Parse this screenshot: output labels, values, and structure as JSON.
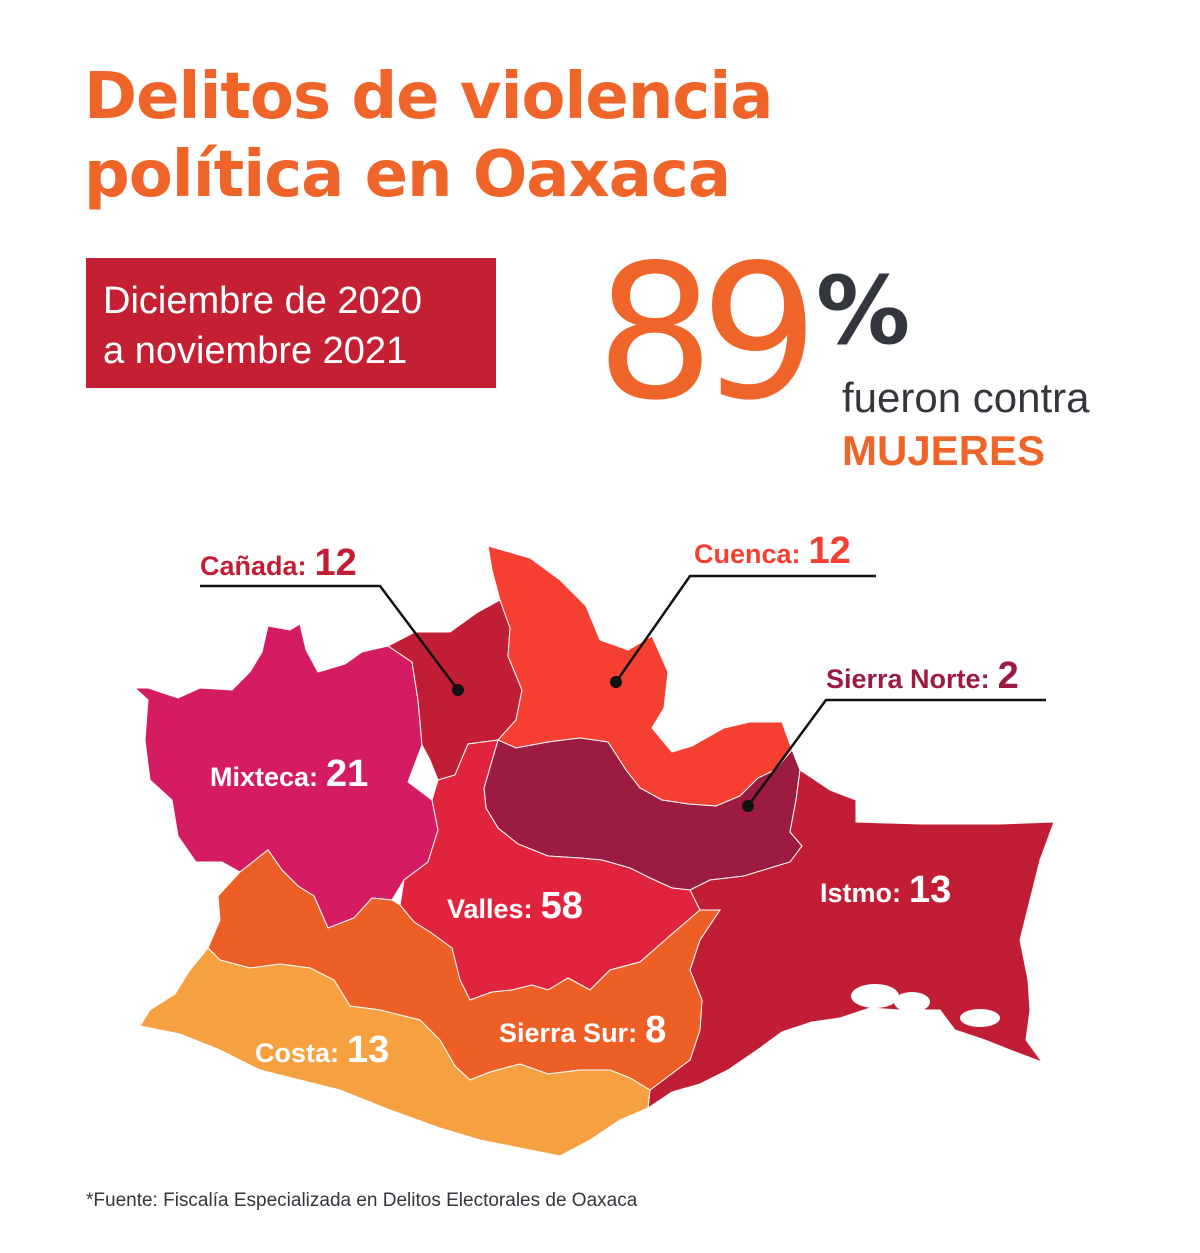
{
  "title": {
    "line1": "Delitos de violencia",
    "line2": "política en Oaxaca"
  },
  "period": {
    "line1": "Diciembre de 2020",
    "line2": "a noviembre 2021"
  },
  "highlight": {
    "number": "89",
    "percent_sign": "%",
    "text": "fueron contra",
    "emphasis": "MUJERES"
  },
  "regions": [
    {
      "name": "Mixteca",
      "value": 21,
      "color": "#d51c62"
    },
    {
      "name": "Cañada",
      "value": 12,
      "color": "#c11d35"
    },
    {
      "name": "Cuenca",
      "value": 12,
      "color": "#f53f31"
    },
    {
      "name": "Sierra Norte",
      "value": 2,
      "color": "#9c1b40"
    },
    {
      "name": "Valles",
      "value": 58,
      "color": "#e1243d"
    },
    {
      "name": "Istmo",
      "value": 13,
      "color": "#c11d35"
    },
    {
      "name": "Sierra Sur",
      "value": 8,
      "color": "#ee5f26"
    },
    {
      "name": "Costa",
      "value": 13,
      "color": "#f7a040"
    }
  ],
  "labels": {
    "mixteca": {
      "name": "Mixteca:",
      "value": "21"
    },
    "canada": {
      "name": "Cañada:",
      "value": "12"
    },
    "cuenca": {
      "name": "Cuenca:",
      "value": "12"
    },
    "sierra_norte": {
      "name": "Sierra Norte:",
      "value": "2"
    },
    "valles": {
      "name": "Valles:",
      "value": "58"
    },
    "istmo": {
      "name": "Istmo:",
      "value": "13"
    },
    "sierra_sur": {
      "name": "Sierra Sur:",
      "value": "8"
    },
    "costa": {
      "name": "Costa:",
      "value": "13"
    }
  },
  "colors": {
    "accent": "#ef6428",
    "banner": "#c41f33",
    "text_dark": "#33363d",
    "label_canada": "#c11d35",
    "label_cuenca": "#f53f31",
    "label_sierra_norte": "#9c1b40"
  },
  "source": "*Fuente: Fiscalía Especializada en Delitos Electorales de Oaxaca"
}
